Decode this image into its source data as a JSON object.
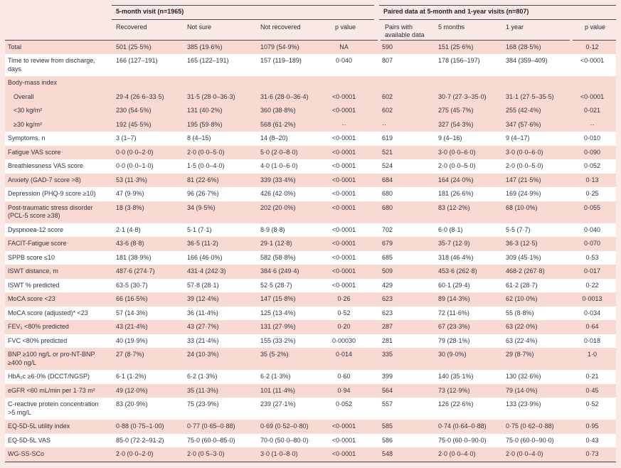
{
  "table": {
    "group1": {
      "title": "5-month visit (n=1965)",
      "columns": [
        "Recovered",
        "Not sure",
        "Not recovered",
        "p value"
      ]
    },
    "group2": {
      "title": "Paired data at 5-month and 1-year visits (n=807)",
      "columns": [
        "Pairs with available data",
        "5 months",
        "1 year",
        "p value"
      ]
    },
    "rows": [
      {
        "label": "Total",
        "shade": "pink",
        "indent": false,
        "group": false,
        "cells": [
          "501 (25·5%)",
          "385 (19·6%)",
          "1079 (54·9%)",
          "NA",
          "590",
          "151 (25·6%)",
          "168 (28·5%)",
          "0·12"
        ]
      },
      {
        "label": "Time to review from discharge, days",
        "shade": "white",
        "indent": false,
        "group": false,
        "cells": [
          "166 (127–191)",
          "165 (122–191)",
          "157 (119–189)",
          "0·040",
          "807",
          "178 (156–197)",
          "384 (359–409)",
          "<0·0001"
        ]
      },
      {
        "label": "Body-mass index",
        "shade": "pink",
        "indent": false,
        "group": true,
        "cells": [
          "",
          "",
          "",
          "",
          "",
          "",
          "",
          ""
        ]
      },
      {
        "label": "Overall",
        "shade": "pink",
        "indent": true,
        "group": false,
        "cells": [
          "29·4 (26·6–33·5)",
          "31·5 (28·0–36·3)",
          "31·6 (28·0–36·4)",
          "<0·0001",
          "602",
          "30·7 (27·3–35·0)",
          "31·1 (27·5–35·5)",
          "<0·0001"
        ]
      },
      {
        "label": "<30 kg/m²",
        "shade": "pink",
        "indent": true,
        "group": false,
        "cells": [
          "230 (54·5%)",
          "131 (40·2%)",
          "360 (38·8%)",
          "<0·0001",
          "602",
          "275 (45·7%)",
          "255 (42·4%)",
          "0·021"
        ]
      },
      {
        "label": "≥30 kg/m²",
        "shade": "pink",
        "indent": true,
        "group": false,
        "cells": [
          "192 (45·5%)",
          "195 (59·8%)",
          "568 (61·2%)",
          "··",
          "··",
          "327 (54·3%)",
          "347 (57·6%)",
          "··"
        ]
      },
      {
        "label": "Symptoms, n",
        "shade": "white",
        "indent": false,
        "group": false,
        "cells": [
          "3 (1–7)",
          "8 (4–15)",
          "14 (8–20)",
          "<0·0001",
          "619",
          "9 (4–16)",
          "9 (4–17)",
          "0·010"
        ]
      },
      {
        "label": "Fatigue VAS score",
        "shade": "pink",
        "indent": false,
        "group": false,
        "cells": [
          "0·0 (0·0–2·0)",
          "2·0 (0·0–5·0)",
          "5·0 (2·0–8·0)",
          "<0·0001",
          "521",
          "3·0 (0·0–6·0)",
          "3·0 (0·0–6·0)",
          "0·090"
        ]
      },
      {
        "label": "Breathlessness VAS score",
        "shade": "white",
        "indent": false,
        "group": false,
        "cells": [
          "0·0 (0·0–1·0)",
          "1·5 (0·0–4·0)",
          "4·0 (1·0–6·0)",
          "<0·0001",
          "524",
          "2·0 (0·0–5·0)",
          "2·0 (0·0–5·0)",
          "0·052"
        ]
      },
      {
        "label": "Anxiety (GAD-7 score >8)",
        "shade": "pink",
        "indent": false,
        "group": false,
        "cells": [
          "53 (11·3%)",
          "81 (22·6%)",
          "339 (33·4%)",
          "<0·0001",
          "684",
          "164 (24·0%)",
          "147 (21·5%)",
          "0·13"
        ]
      },
      {
        "label": "Depression (PHQ-9 score ≥10)",
        "shade": "white",
        "indent": false,
        "group": false,
        "cells": [
          "47 (9·9%)",
          "96 (26·7%)",
          "426 (42·0%)",
          "<0·0001",
          "680",
          "181 (26·6%)",
          "169 (24·9%)",
          "0·25"
        ]
      },
      {
        "label": "Post-traumatic stress disorder (PCL-5 score ≥38)",
        "shade": "pink",
        "indent": false,
        "group": false,
        "cells": [
          "18 (3·8%)",
          "34 (9·5%)",
          "202 (20·0%)",
          "<0·0001",
          "680",
          "83 (12·2%)",
          "68 (10·0%)",
          "0·055"
        ]
      },
      {
        "label": "Dyspnoea-12 score",
        "shade": "white",
        "indent": false,
        "group": false,
        "cells": [
          "2·1 (4·8)",
          "5·1 (7·1)",
          "8·9 (8·8)",
          "<0·0001",
          "702",
          "6·0 (8·1)",
          "5·5 (7·7)",
          "0·040"
        ]
      },
      {
        "label": "FACIT-Fatigue score",
        "shade": "pink",
        "indent": false,
        "group": false,
        "cells": [
          "43·6 (8·8)",
          "36·5 (11·2)",
          "29·1 (12·8)",
          "<0·0001",
          "679",
          "35·7 (12·9)",
          "36·3 (12·5)",
          "0·070"
        ]
      },
      {
        "label": "SPPB score ≤10",
        "shade": "white",
        "indent": false,
        "group": false,
        "cells": [
          "181 (38·9%)",
          "166 (46·0%)",
          "582 (58·8%)",
          "<0·0001",
          "685",
          "318 (46·4%)",
          "309 (45·1%)",
          "0·53"
        ]
      },
      {
        "label": "ISWT distance, m",
        "shade": "pink",
        "indent": false,
        "group": false,
        "cells": [
          "487·6 (274·7)",
          "431·4 (242·3)",
          "384·6 (249·4)",
          "<0·0001",
          "509",
          "453·6 (262·8)",
          "468·2 (267·8)",
          "0·017"
        ]
      },
      {
        "label": "ISWT % predicted",
        "shade": "white",
        "indent": false,
        "group": false,
        "cells": [
          "63·5 (30·7)",
          "57·8 (28·1)",
          "52·5 (28·7)",
          "<0·0001",
          "429",
          "60·1 (29·4)",
          "61·2 (28·7)",
          "0·22"
        ]
      },
      {
        "label": "MoCA score <23",
        "shade": "pink",
        "indent": false,
        "group": false,
        "cells": [
          "66 (16·5%)",
          "39 (12·4%)",
          "147 (15·8%)",
          "0·26",
          "623",
          "89 (14·3%)",
          "62 (10·0%)",
          "0·0013"
        ]
      },
      {
        "label": "MoCA score (adjusted)* <23",
        "shade": "white",
        "indent": false,
        "group": false,
        "cells": [
          "57 (14·3%)",
          "36 (11·4%)",
          "125 (13·4%)",
          "0·52",
          "623",
          "72 (11·6%)",
          "55 (8·8%)",
          "0·034"
        ]
      },
      {
        "label": "FEV₁ <80% predicted",
        "shade": "pink",
        "indent": false,
        "group": false,
        "cells": [
          "43 (21·4%)",
          "43 (27·7%)",
          "131 (27·9%)",
          "0·20",
          "287",
          "67 (23·3%)",
          "63 (22·0%)",
          "0·64"
        ]
      },
      {
        "label": "FVC <80% predicted",
        "shade": "white",
        "indent": false,
        "group": false,
        "cells": [
          "40 (19·9%)",
          "33 (21·4%)",
          "155 (33·2%)",
          "0·00030",
          "281",
          "79 (28·1%)",
          "63 (22·4%)",
          "0·018"
        ]
      },
      {
        "label": "BNP ≥100 ng/L or pro-NT-BNP ≥400 ng/L",
        "shade": "pink",
        "indent": false,
        "group": false,
        "cells": [
          "27 (8·7%)",
          "24 (10·3%)",
          "35 (5·2%)",
          "0·014",
          "335",
          "30 (9·0%)",
          "29 (8·7%)",
          "1·0"
        ]
      },
      {
        "label": "HbA₁c ≥6·0% (DCCT/NGSP)",
        "shade": "white",
        "indent": false,
        "group": false,
        "cells": [
          "6·1 (1·2%)",
          "6·2 (1·3%)",
          "6·2 (1·3%)",
          "0·60",
          "399",
          "140 (35·1%)",
          "130 (32·6%)",
          "0·21"
        ]
      },
      {
        "label": "eGFR <60 mL/min per 1·73 m²",
        "shade": "pink",
        "indent": false,
        "group": false,
        "cells": [
          "49 (12·0%)",
          "35 (11·3%)",
          "101 (11·4%)",
          "0·94",
          "564",
          "73 (12·9%)",
          "79 (14·0%)",
          "0·45"
        ]
      },
      {
        "label": "C-reactive protein concentration >5 mg/L",
        "shade": "white",
        "indent": false,
        "group": false,
        "cells": [
          "83 (20·9%)",
          "75 (23·9%)",
          "239 (27·1%)",
          "0·052",
          "557",
          "126 (22·6%)",
          "133 (23·9%)",
          "0·52"
        ]
      },
      {
        "label": "EQ-5D-5L utility index",
        "shade": "pink",
        "indent": false,
        "group": false,
        "cells": [
          "0·88 (0·75–1·00)",
          "0·77 (0·65–0·88)",
          "0·69 (0·52–0·80)",
          "<0·0001",
          "585",
          "0·74 (0·64–0·88)",
          "0·75 (0·62–0·88)",
          "0·95"
        ]
      },
      {
        "label": "EQ-5D-5L VAS",
        "shade": "white",
        "indent": false,
        "group": false,
        "cells": [
          "85·0 (72·2–91·2)",
          "75·0 (60·0–85·0)",
          "70·0 (50·0–80·0)",
          "<0·0001",
          "586",
          "75·0 (60·0–90·0)",
          "75·0 (60·0–90·0)",
          "0·43"
        ]
      },
      {
        "label": "WG-SS-SCo",
        "shade": "pink",
        "indent": false,
        "group": false,
        "cells": [
          "2·0 (0·0–2·0)",
          "2·0 (0·5–3·0)",
          "3·0 (1·0–8·0)",
          "<0·0001",
          "548",
          "2·0 (0·0–4·0)",
          "2·0 (0·0–4·0)",
          "0·73"
        ]
      }
    ]
  }
}
